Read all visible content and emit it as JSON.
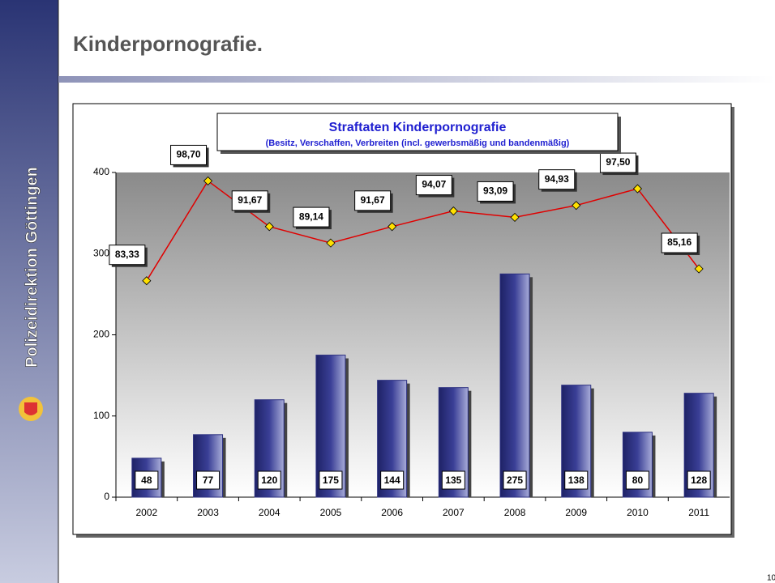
{
  "slide_title": "Kinderpornografie.",
  "sidebar": "Polizeidirektion Göttingen",
  "page_number": "10",
  "chart_data": {
    "type": "bar",
    "title": "Straftaten Kinderpornografie",
    "subtitle": "(Besitz, Verschaffen, Verbreiten (incl. gewerbsmäßig und bandenmäßig)",
    "categories": [
      "2002",
      "2003",
      "2004",
      "2005",
      "2006",
      "2007",
      "2008",
      "2009",
      "2010",
      "2011"
    ],
    "series": [
      {
        "color": "#2b2f80",
        "values": [
          48,
          77,
          120,
          175,
          144,
          135,
          275,
          138,
          80,
          128
        ]
      },
      {
        "type": "line",
        "axis": "y2",
        "color": "#e00000",
        "values": [
          83.33,
          98.7,
          91.67,
          89.14,
          91.67,
          94.07,
          93.09,
          94.93,
          97.5,
          85.16
        ],
        "value_labels": [
          "83,33",
          "98,70",
          "91,67",
          "89,14",
          "91,67",
          "94,07",
          "93,09",
          "94,93",
          "97,50",
          "85,16"
        ]
      }
    ],
    "ylim": [
      0,
      400
    ],
    "yticks": [
      0,
      100,
      200,
      300,
      400
    ],
    "y2lim": [
      50,
      100
    ]
  }
}
